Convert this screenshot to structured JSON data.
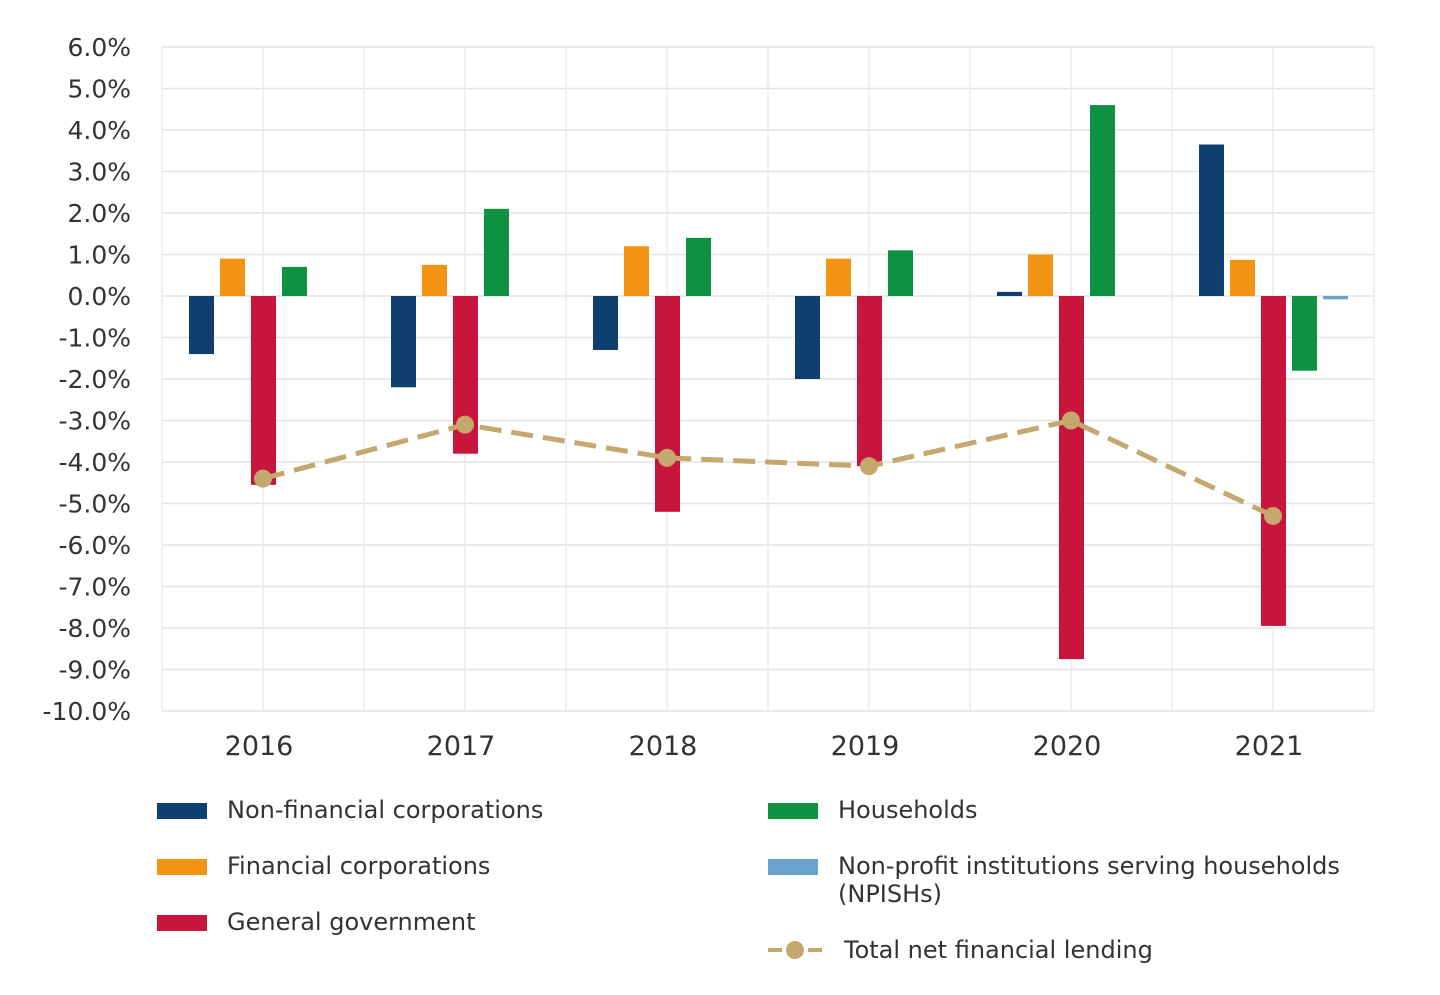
{
  "chart_data": {
    "type": "bar",
    "categories": [
      "2016",
      "2017",
      "2018",
      "2019",
      "2020",
      "2021"
    ],
    "ylim": [
      -10,
      6
    ],
    "yticks": [
      "6.0%",
      "5.0%",
      "4.0%",
      "3.0%",
      "2.0%",
      "1.0%",
      "0.0%",
      "-1.0%",
      "-2.0%",
      "-3.0%",
      "-4.0%",
      "-5.0%",
      "-6.0%",
      "-7.0%",
      "-8.0%",
      "-9.0%",
      "-10.0%"
    ],
    "ytick_values": [
      6,
      5,
      4,
      3,
      2,
      1,
      0,
      -1,
      -2,
      -3,
      -4,
      -5,
      -6,
      -7,
      -8,
      -9,
      -10
    ],
    "grid": true,
    "legend_placement": "bottom",
    "series": [
      {
        "name": "Non-financial corporations",
        "type": "bar",
        "color": "#0f3f6e",
        "values": [
          -1.4,
          -2.2,
          -1.3,
          -2.0,
          0.1,
          3.65
        ]
      },
      {
        "name": "Financial corporations",
        "type": "bar",
        "color": "#f39314",
        "values": [
          0.9,
          0.75,
          1.2,
          0.9,
          1.0,
          0.87
        ]
      },
      {
        "name": "General government",
        "type": "bar",
        "color": "#c8153c",
        "values": [
          -4.55,
          -3.8,
          -5.2,
          -4.1,
          -8.75,
          -7.95
        ]
      },
      {
        "name": "Households",
        "type": "bar",
        "color": "#0f9142",
        "values": [
          0.7,
          2.1,
          1.4,
          1.1,
          4.6,
          -1.8
        ]
      },
      {
        "name": "Non-profit institutions serving households (NPISHs)",
        "type": "bar",
        "color": "#6aa3cb",
        "values": [
          0,
          0,
          0,
          0,
          0,
          -0.08
        ]
      },
      {
        "name": "Total net financial lending",
        "type": "line",
        "style": "dashed",
        "marker": "circle",
        "color": "#c4a86e",
        "values": [
          -4.4,
          -3.1,
          -3.9,
          -4.1,
          -3.0,
          -5.3
        ]
      }
    ]
  },
  "legend": {
    "nfc": "Non-financial corporations",
    "fc": "Financial corporations",
    "gg": "General government",
    "hh": "Households",
    "npish_1": "Non-profit institutions serving households",
    "npish_2": "(NPISHs)",
    "total": "Total net financial lending"
  }
}
